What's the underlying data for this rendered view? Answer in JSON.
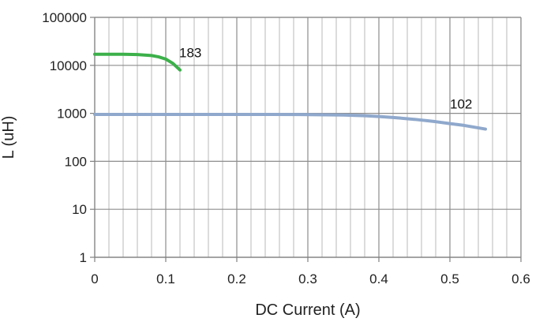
{
  "chart_data": {
    "type": "line",
    "title": "",
    "xlabel": "DC Current (A)",
    "ylabel": "L (uH)",
    "xlim": [
      0,
      0.6
    ],
    "ylim": [
      1,
      100000
    ],
    "y_scale": "log",
    "grid": true,
    "x_ticks": [
      0,
      0.1,
      0.2,
      0.3,
      0.4,
      0.5,
      0.6
    ],
    "x_tick_labels": [
      "0",
      "0.1",
      "0.2",
      "0.3",
      "0.4",
      "0.5",
      "0.6"
    ],
    "y_ticks": [
      1,
      10,
      100,
      1000,
      10000,
      100000
    ],
    "y_tick_labels": [
      "1",
      "10",
      "100",
      "1000",
      "10000",
      "100000"
    ],
    "series": [
      {
        "name": "183",
        "color": "#3cb04a",
        "x": [
          0,
          0.02,
          0.04,
          0.06,
          0.08,
          0.09,
          0.1,
          0.11,
          0.12
        ],
        "y": [
          17000,
          17000,
          17000,
          16800,
          16000,
          15000,
          13500,
          11000,
          8000
        ]
      },
      {
        "name": "102",
        "color": "#8fa8cc",
        "x": [
          0,
          0.05,
          0.1,
          0.15,
          0.2,
          0.25,
          0.3,
          0.35,
          0.38,
          0.4,
          0.42,
          0.45,
          0.48,
          0.5,
          0.52,
          0.55
        ],
        "y": [
          950,
          950,
          950,
          950,
          950,
          950,
          940,
          920,
          890,
          860,
          820,
          750,
          670,
          610,
          560,
          470
        ]
      }
    ]
  }
}
